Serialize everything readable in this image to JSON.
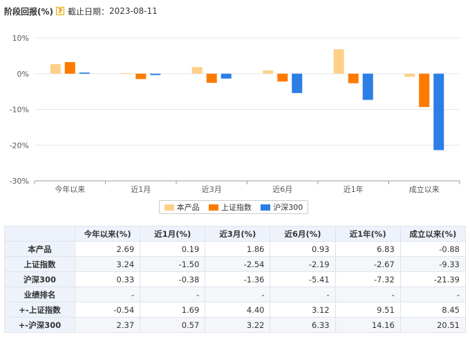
{
  "header": {
    "title": "阶段回报(%)",
    "help_icon": "?",
    "date_label": "截止日期：",
    "date": "2023-08-11"
  },
  "colors": {
    "product": "#fdd08a",
    "sse": "#fd7a00",
    "csi300": "#2a7ee5"
  },
  "chart_data": {
    "type": "bar",
    "categories": [
      "今年以来",
      "近1月",
      "近3月",
      "近6月",
      "近1年",
      "成立以来"
    ],
    "series": [
      {
        "name": "本产品",
        "values": [
          2.69,
          0.19,
          1.86,
          0.93,
          6.83,
          -0.88
        ]
      },
      {
        "name": "上证指数",
        "values": [
          3.24,
          -1.5,
          -2.54,
          -2.19,
          -2.67,
          -9.33
        ]
      },
      {
        "name": "沪深300",
        "values": [
          0.33,
          -0.38,
          -1.36,
          -5.41,
          -7.32,
          -21.39
        ]
      }
    ],
    "ylim": [
      -30,
      10
    ],
    "yticks": [
      10,
      0,
      -10,
      -20,
      -30
    ],
    "ytick_labels": [
      "10%",
      "0%",
      "-10%",
      "-20%",
      "-30%"
    ],
    "grid": true,
    "legend_position": "bottom-center"
  },
  "table": {
    "headers": [
      "",
      "今年以来(%)",
      "近1月(%)",
      "近3月(%)",
      "近6月(%)",
      "近1年(%)",
      "成立以来(%)"
    ],
    "rows": [
      {
        "label": "本产品",
        "cells": [
          "2.69",
          "0.19",
          "1.86",
          "0.93",
          "6.83",
          "-0.88"
        ]
      },
      {
        "label": "上证指数",
        "cells": [
          "3.24",
          "-1.50",
          "-2.54",
          "-2.19",
          "-2.67",
          "-9.33"
        ]
      },
      {
        "label": "沪深300",
        "cells": [
          "0.33",
          "-0.38",
          "-1.36",
          "-5.41",
          "-7.32",
          "-21.39"
        ]
      },
      {
        "label": "业绩排名",
        "cells": [
          "-",
          "-",
          "-",
          "-",
          "-",
          "-"
        ]
      },
      {
        "label": "+-上证指数",
        "cells": [
          "-0.54",
          "1.69",
          "4.40",
          "3.12",
          "9.51",
          "8.45"
        ]
      },
      {
        "label": "+-沪深300",
        "cells": [
          "2.37",
          "0.57",
          "3.22",
          "6.33",
          "14.16",
          "20.51"
        ]
      }
    ]
  }
}
